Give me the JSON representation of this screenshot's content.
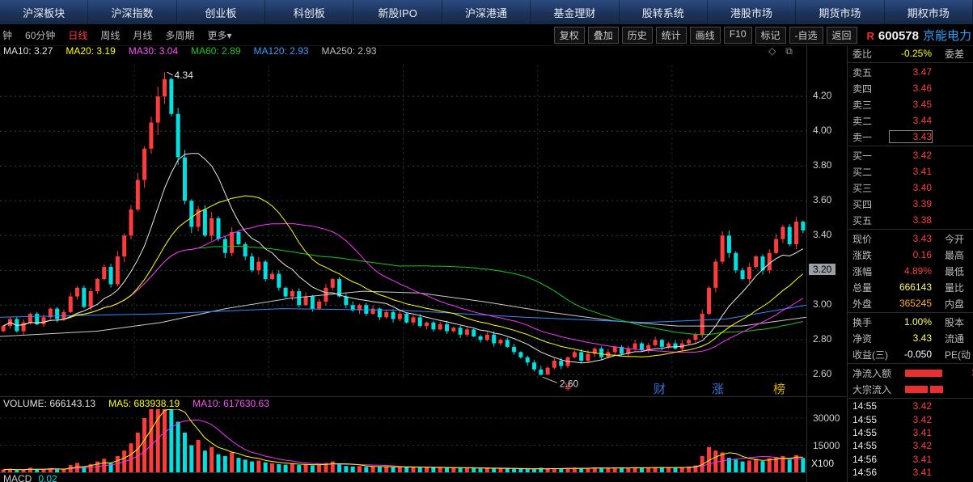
{
  "top_nav": {
    "tabs": [
      "沪深板块",
      "沪深指数",
      "创业板",
      "科创板",
      "新股IPO",
      "沪深港通",
      "基金理财",
      "股转系统",
      "港股市场",
      "期货市场",
      "期权市场"
    ]
  },
  "toolbar": {
    "periods": [
      {
        "label": "钟",
        "active": false
      },
      {
        "label": "60分钟",
        "active": false
      },
      {
        "label": "日线",
        "active": true
      },
      {
        "label": "周线",
        "active": false
      },
      {
        "label": "月线",
        "active": false
      },
      {
        "label": "多周期",
        "active": false
      },
      {
        "label": "更多▾",
        "active": false
      }
    ],
    "buttons": [
      "复权",
      "叠加",
      "历史",
      "统计",
      "画线",
      "F10",
      "标记",
      "-自选",
      "返回"
    ],
    "stock": {
      "flag": "R",
      "code": "600578",
      "name": "京能电力"
    }
  },
  "ma_labels": [
    {
      "text": "MA10: 3.27",
      "color": "#e0e0e0"
    },
    {
      "text": "MA20: 3.19",
      "color": "#ffff00"
    },
    {
      "text": "MA30: 3.04",
      "color": "#ff4fff"
    },
    {
      "text": "MA60: 2.89",
      "color": "#18c918"
    },
    {
      "text": "MA120: 2.93",
      "color": "#3b9bff"
    },
    {
      "text": "MA250: 2.93",
      "color": "#bdbdbd"
    }
  ],
  "corner_icons": [
    {
      "glyph": "◇",
      "name": "diamond-icon"
    },
    {
      "glyph": "⧉",
      "name": "window-icon"
    }
  ],
  "price_axis": {
    "labels": [
      "4.20",
      "4.00",
      "3.80",
      "3.60",
      "3.40",
      "3.20",
      "3.00",
      "2.80",
      "2.60"
    ],
    "highlight": "3.20"
  },
  "annotations": {
    "peak": "4.34",
    "low": "2.60"
  },
  "watermark": [
    {
      "char": "¥",
      "color": "#ff4444",
      "x": 698
    },
    {
      "char": "财",
      "color": "#4488ff",
      "x": 808
    },
    {
      "char": "涨",
      "color": "#4488ff",
      "x": 880
    },
    {
      "char": "榜",
      "color": "#ffcc00",
      "x": 956
    }
  ],
  "volume_pane": {
    "header": [
      {
        "text": "VOLUME: 666143.13",
        "color": "#e0e0e0"
      },
      {
        "text": "MA5: 683938.19",
        "color": "#ffff00"
      },
      {
        "text": "MA10: 617630.63",
        "color": "#ff4fff"
      }
    ],
    "axis": [
      "30000",
      "15000"
    ],
    "unit": "X100"
  },
  "macd_strip": {
    "label": "MACD",
    "value": "0.02"
  },
  "chart_data": {
    "type": "candlestick",
    "ylim": [
      2.55,
      4.42
    ],
    "price_gridlines": [
      2.6,
      2.8,
      3.0,
      3.2,
      3.4,
      3.6,
      3.8,
      4.0,
      4.2
    ],
    "closes": [
      2.88,
      2.92,
      2.85,
      2.9,
      2.95,
      2.89,
      2.93,
      2.98,
      2.92,
      2.96,
      3.05,
      3.1,
      2.99,
      3.08,
      3.15,
      3.22,
      3.12,
      3.28,
      3.4,
      3.55,
      3.72,
      3.9,
      4.05,
      4.2,
      4.3,
      4.1,
      3.85,
      3.6,
      3.45,
      3.55,
      3.4,
      3.5,
      3.38,
      3.3,
      3.42,
      3.35,
      3.28,
      3.2,
      3.25,
      3.15,
      3.18,
      3.1,
      3.05,
      3.08,
      3.0,
      3.05,
      2.98,
      3.02,
      3.1,
      3.15,
      3.05,
      3.0,
      2.97,
      3.0,
      2.95,
      2.98,
      2.93,
      2.96,
      2.92,
      2.95,
      2.9,
      2.93,
      2.88,
      2.9,
      2.86,
      2.89,
      2.85,
      2.87,
      2.83,
      2.86,
      2.82,
      2.8,
      2.83,
      2.78,
      2.8,
      2.76,
      2.73,
      2.7,
      2.67,
      2.63,
      2.6,
      2.64,
      2.68,
      2.65,
      2.7,
      2.73,
      2.68,
      2.72,
      2.75,
      2.7,
      2.73,
      2.76,
      2.72,
      2.75,
      2.78,
      2.74,
      2.77,
      2.8,
      2.76,
      2.78,
      2.75,
      2.78,
      2.8,
      2.83,
      2.95,
      3.1,
      3.25,
      3.4,
      3.3,
      3.2,
      3.15,
      3.22,
      3.28,
      3.2,
      3.3,
      3.38,
      3.45,
      3.35,
      3.48,
      3.43
    ],
    "volumes": [
      1500,
      1800,
      1200,
      1600,
      2500,
      1400,
      1700,
      2200,
      1500,
      1900,
      4000,
      5200,
      3000,
      4500,
      6000,
      7500,
      5000,
      9000,
      12000,
      16000,
      22000,
      30000,
      38000,
      42000,
      40000,
      35000,
      28000,
      22000,
      15000,
      18000,
      12000,
      14000,
      10000,
      9000,
      11000,
      8000,
      7000,
      6000,
      6500,
      5500,
      5000,
      4500,
      4200,
      4800,
      4000,
      4300,
      3800,
      4100,
      5200,
      6000,
      4500,
      3500,
      3200,
      3400,
      3000,
      3300,
      2900,
      3100,
      2800,
      3000,
      2700,
      2900,
      2600,
      2800,
      2500,
      2700,
      2400,
      2600,
      2300,
      2500,
      2200,
      2100,
      2400,
      2000,
      2200,
      2100,
      1900,
      1800,
      1700,
      1600,
      2500,
      2000,
      2200,
      1900,
      2300,
      2600,
      2100,
      2400,
      2700,
      2200,
      2500,
      2600,
      2300,
      2500,
      2800,
      2400,
      2600,
      2900,
      2500,
      2700,
      2400,
      2800,
      3200,
      3800,
      9000,
      14000,
      12000,
      11000,
      8000,
      7000,
      6000,
      6500,
      7500,
      6200,
      7800,
      8500,
      9000,
      7000,
      9500,
      8000
    ],
    "peak_index": 24,
    "peak_price": 4.34,
    "low_index": 80,
    "low_price": 2.6,
    "ma120_path": [
      [
        0,
        2.93
      ],
      [
        0.2,
        2.95
      ],
      [
        0.35,
        2.98
      ],
      [
        0.5,
        2.97
      ],
      [
        0.65,
        2.93
      ],
      [
        0.8,
        2.9
      ],
      [
        0.9,
        2.92
      ],
      [
        1,
        3.0
      ]
    ],
    "ma250_path": [
      [
        0,
        2.82
      ],
      [
        0.12,
        2.85
      ],
      [
        0.2,
        2.9
      ],
      [
        0.28,
        2.98
      ],
      [
        0.36,
        3.04
      ],
      [
        0.45,
        3.08
      ],
      [
        0.52,
        3.07
      ],
      [
        0.6,
        3.02
      ],
      [
        0.68,
        2.96
      ],
      [
        0.76,
        2.91
      ],
      [
        0.84,
        2.88
      ],
      [
        0.92,
        2.88
      ],
      [
        1,
        2.93
      ]
    ],
    "vol_axis_max": 30000,
    "colors": {
      "up": "#ff3c3c",
      "down": "#00e0e0",
      "ma10": "#e8e8e8",
      "ma20": "#ffff00",
      "ma30": "#ff2fff",
      "ma60": "#18c918",
      "ma120": "#2b8fff",
      "ma250": "#cccccc",
      "vol_ma5": "#ffff00",
      "vol_ma10": "#ff2fff"
    }
  },
  "right_panel": {
    "weibi": {
      "label": "委比",
      "value": "-0.25%",
      "value_color": "#ffff00",
      "label2": "委差"
    },
    "sells": [
      [
        "卖五",
        "3.47"
      ],
      [
        "卖四",
        "3.46"
      ],
      [
        "卖三",
        "3.45"
      ],
      [
        "卖二",
        "3.44"
      ],
      [
        "卖一",
        "3.43"
      ]
    ],
    "buys": [
      [
        "买一",
        "3.42"
      ],
      [
        "买二",
        "3.41"
      ],
      [
        "买三",
        "3.40"
      ],
      [
        "买四",
        "3.39"
      ],
      [
        "买五",
        "3.38"
      ]
    ],
    "price_color": "#ff3c3c",
    "boxed_price": "3.43",
    "info": [
      {
        "label": "现价",
        "value": "3.43",
        "color": "#ff3c3c",
        "label2": "今开"
      },
      {
        "label": "涨跌",
        "value": "0.16",
        "color": "#ff3c3c",
        "label2": "最高"
      },
      {
        "label": "涨幅",
        "value": "4.89%",
        "color": "#ff3c3c",
        "label2": "最低"
      },
      {
        "label": "总量",
        "value": "666143",
        "color": "#ffff66",
        "label2": "量比"
      },
      {
        "label": "外盘",
        "value": "365245",
        "color": "#ffaa33",
        "label2": "内盘"
      },
      {
        "label": "换手",
        "value": "1.00%",
        "color": "#ffff66",
        "label2": "股本"
      },
      {
        "label": "净资",
        "value": "3.43",
        "color": "#ffff66",
        "label2": "流通"
      },
      {
        "label": "收益(三)",
        "value": "-0.050",
        "color": "#ffffff",
        "label2": "PE(动"
      }
    ],
    "flows": [
      {
        "label": "净流入额",
        "bars": [
          46
        ],
        "tail": "3"
      },
      {
        "label": "大宗流入",
        "bars": [
          28,
          16
        ],
        "tail": ""
      }
    ],
    "ticks": [
      [
        "14:55",
        "3.42"
      ],
      [
        "14:55",
        "3.42"
      ],
      [
        "14:55",
        "3.41"
      ],
      [
        "14:55",
        "3.42"
      ],
      [
        "14:56",
        "3.41"
      ],
      [
        "14:56",
        "3.41"
      ],
      [
        "14:56",
        "3.42"
      ]
    ]
  }
}
